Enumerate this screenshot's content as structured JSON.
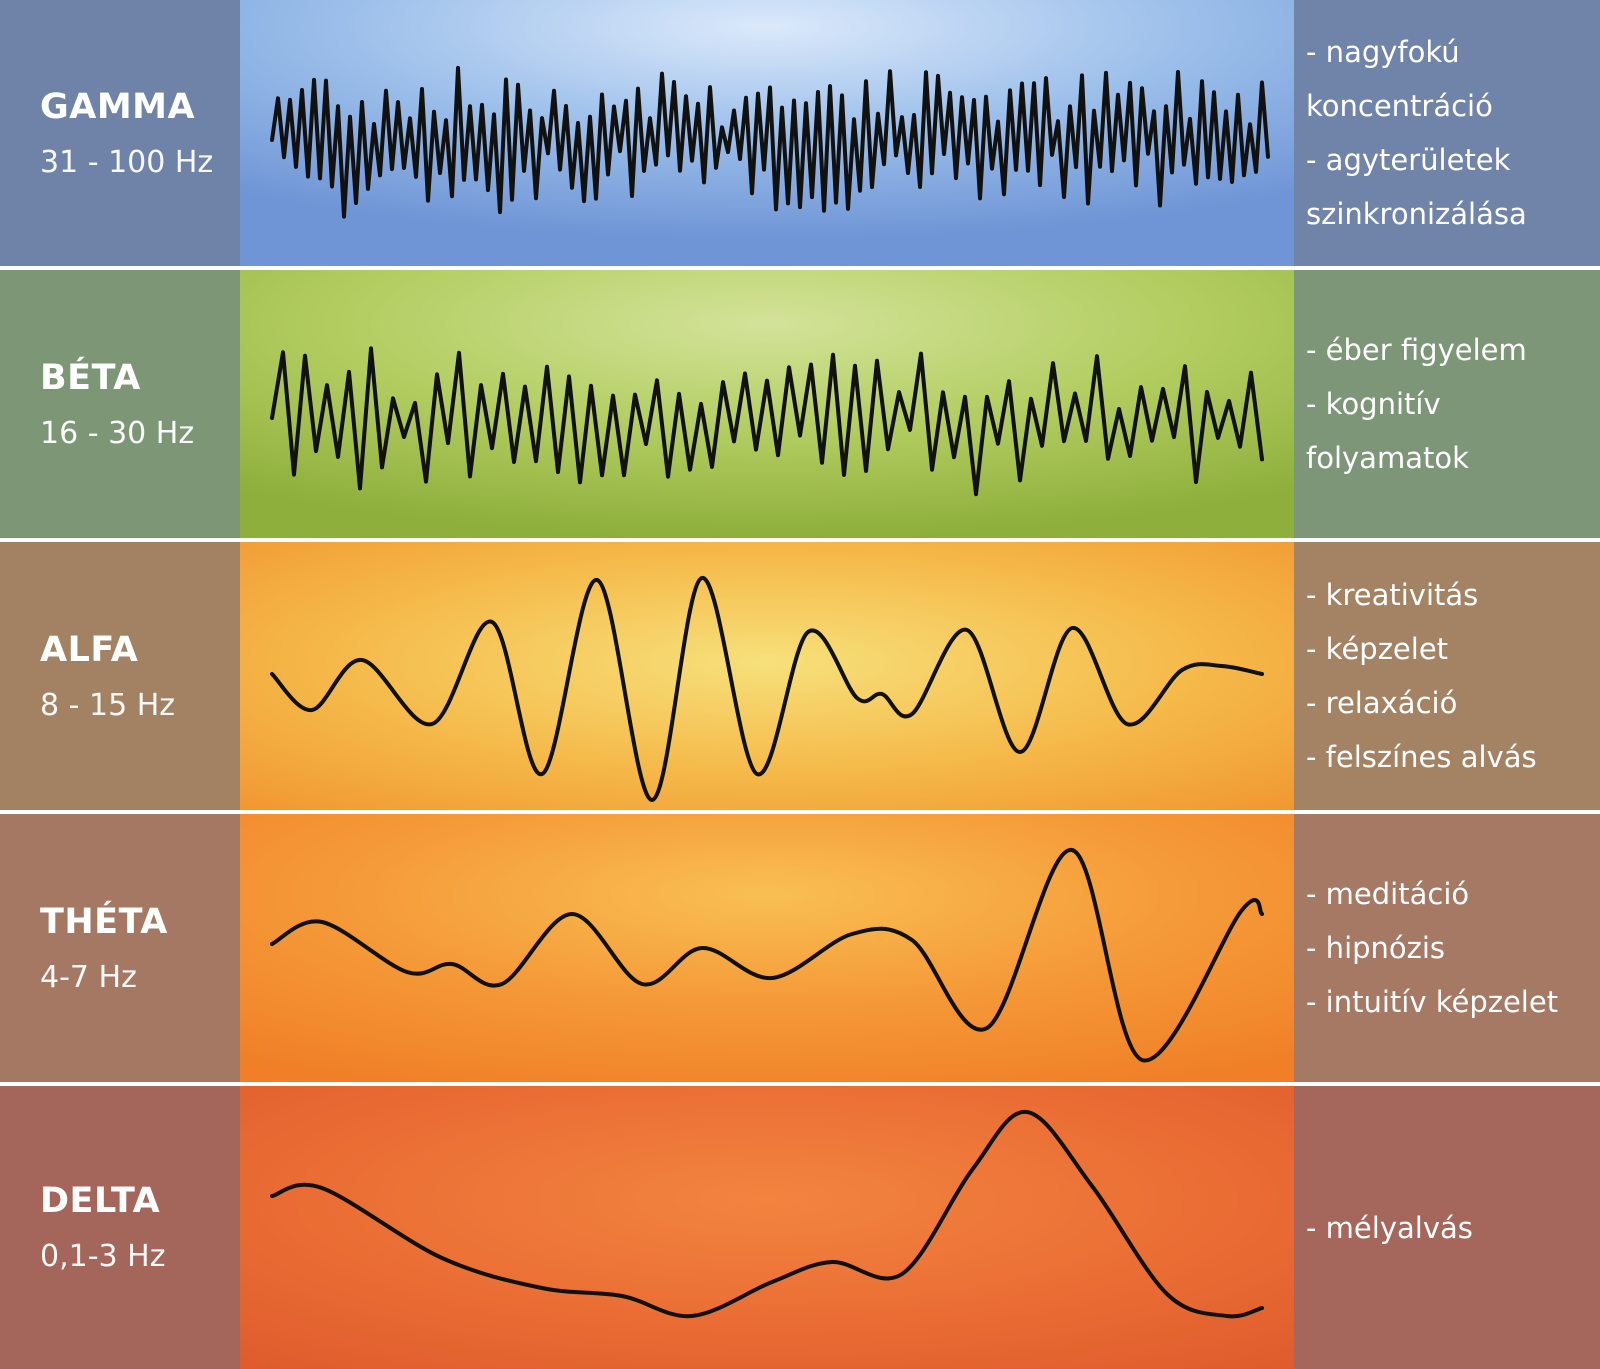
{
  "bands": [
    {
      "name": "GAMMA",
      "freq": "31 - 100 Hz",
      "desc": [
        "- nagyfokú",
        "koncentráció",
        "- agyterületek",
        "szinkronizálása"
      ],
      "label_color": "#6f82a8",
      "desc_color": "#7083a9",
      "wave_gradient": [
        "#dbe9fb",
        "#9cbfea",
        "#6f95d6"
      ]
    },
    {
      "name": "BÉTA",
      "freq": "16 - 30 Hz",
      "desc": [
        "- éber figyelem",
        "- kognitív",
        "folyamatok"
      ],
      "label_color": "#7c9676",
      "desc_color": "#7d9678",
      "wave_gradient": [
        "#d3e39a",
        "#b3cd61",
        "#8eaf3c"
      ]
    },
    {
      "name": "ALFA",
      "freq": "8 - 15 Hz",
      "desc": [
        "- kreativitás",
        "- képzelet",
        "- relaxáció",
        "- felszínes alvás"
      ],
      "label_color": "#a38263",
      "desc_color": "#a48364",
      "wave_gradient": [
        "#f7e07a",
        "#f5b949",
        "#f19631"
      ]
    },
    {
      "name": "THÉTA",
      "freq": "4-7 Hz",
      "desc": [
        "- meditáció",
        "- hipnózis",
        "- intuitív képzelet"
      ],
      "label_color": "#a57864",
      "desc_color": "#a67965",
      "wave_gradient": [
        "#f9bf52",
        "#f59a38",
        "#f07f27"
      ]
    },
    {
      "name": "DELTA",
      "freq": "0,1-3 Hz",
      "desc": [
        "- mélyalvás"
      ],
      "label_color": "#a4655a",
      "desc_color": "#a5665b",
      "wave_gradient": [
        "#f2843f",
        "#ea6d34",
        "#de5a2c"
      ]
    }
  ]
}
